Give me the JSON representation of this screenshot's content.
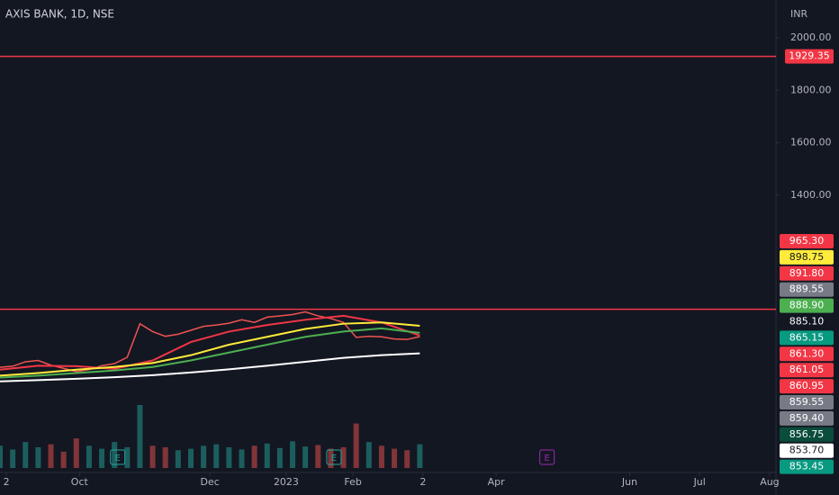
{
  "chart_data": {
    "type": "line",
    "title": "AXIS BANK, 1D, NSE",
    "currency": "INR",
    "xlim": [
      0,
      244
    ],
    "ylim": [
      360,
      2144
    ],
    "xticks": [
      {
        "value": 2,
        "label": "2"
      },
      {
        "value": 25,
        "label": "Oct"
      },
      {
        "value": 66,
        "label": "Dec"
      },
      {
        "value": 90,
        "label": "2023"
      },
      {
        "value": 111,
        "label": "Feb"
      },
      {
        "value": 133,
        "label": "2"
      },
      {
        "value": 156,
        "label": "Apr"
      },
      {
        "value": 198,
        "label": "Jun"
      },
      {
        "value": 220,
        "label": "Jul"
      },
      {
        "value": 242,
        "label": "Aug"
      }
    ],
    "yticks": [
      {
        "value": 2000,
        "label": "2000.00"
      },
      {
        "value": 1800,
        "label": "1800.00"
      },
      {
        "value": 1600,
        "label": "1600.00"
      },
      {
        "value": 1400,
        "label": "1400.00"
      }
    ],
    "series": [
      {
        "color": "#ef5350",
        "x": [
          0,
          4,
          8,
          12,
          16,
          20,
          24,
          28,
          32,
          36,
          40,
          44,
          48,
          52,
          56,
          60,
          64,
          68,
          72,
          76,
          80,
          84,
          88,
          92,
          96,
          100,
          104,
          108,
          112,
          116,
          120,
          124,
          128,
          132
        ],
        "values": [
          744,
          748,
          765,
          770,
          752,
          740,
          727,
          735,
          750,
          758,
          782,
          910,
          880,
          862,
          870,
          885,
          900,
          905,
          912,
          925,
          915,
          935,
          940,
          945,
          955,
          940,
          930,
          915,
          858,
          862,
          860,
          852,
          850,
          861
        ]
      },
      {
        "color": "#f23645",
        "x": [
          0,
          12,
          24,
          36,
          48,
          60,
          72,
          84,
          96,
          108,
          120,
          132
        ],
        "values": [
          735,
          750,
          748,
          738,
          770,
          840,
          880,
          905,
          925,
          940,
          915,
          865
        ]
      },
      {
        "color": "#ffeb3b",
        "x": [
          0,
          12,
          24,
          36,
          48,
          60,
          72,
          84,
          96,
          108,
          120,
          132
        ],
        "values": [
          712,
          722,
          735,
          745,
          760,
          790,
          830,
          860,
          890,
          910,
          915,
          902
        ]
      },
      {
        "color": "#4caf50",
        "x": [
          0,
          12,
          24,
          36,
          48,
          60,
          72,
          84,
          96,
          108,
          120,
          132
        ],
        "values": [
          705,
          712,
          722,
          732,
          745,
          770,
          800,
          830,
          860,
          880,
          892,
          875
        ]
      },
      {
        "color": "#ffffff",
        "x": [
          0,
          12,
          24,
          36,
          48,
          60,
          72,
          84,
          96,
          108,
          120,
          132
        ],
        "values": [
          690,
          695,
          700,
          706,
          714,
          724,
          736,
          750,
          765,
          780,
          790,
          797
        ]
      }
    ],
    "volume": {
      "x": [
        0,
        4,
        8,
        12,
        16,
        20,
        24,
        28,
        32,
        36,
        40,
        44,
        48,
        52,
        56,
        60,
        64,
        68,
        72,
        76,
        80,
        84,
        88,
        92,
        96,
        100,
        104,
        108,
        112,
        116,
        120,
        124,
        128,
        132
      ],
      "values": [
        30,
        25,
        35,
        28,
        32,
        22,
        40,
        30,
        26,
        35,
        28,
        85,
        30,
        28,
        24,
        26,
        30,
        32,
        28,
        25,
        30,
        33,
        27,
        36,
        29,
        31,
        26,
        28,
        60,
        35,
        30,
        26,
        24,
        32
      ]
    },
    "levels": [
      {
        "value": 1929.35,
        "color": "#f23645"
      },
      {
        "value": 965.3,
        "color": "#f23645"
      }
    ],
    "events": [
      {
        "x": 37,
        "label": "E",
        "color": "#26a69a"
      },
      {
        "x": 105,
        "label": "E",
        "color": "#26a69a"
      },
      {
        "x": 172,
        "label": "E",
        "color": "#9c27b0"
      }
    ],
    "price_tags": [
      {
        "label": "965.30",
        "color": "#f23645",
        "text_color": "#ffffff"
      },
      {
        "label": "898.75",
        "color": "#ffeb3b",
        "text_color": "#131722"
      },
      {
        "label": "891.80",
        "color": "#f23645",
        "text_color": "#ffffff"
      },
      {
        "label": "889.55",
        "color": "#787b86",
        "text_color": "#ffffff"
      },
      {
        "label": "888.90",
        "color": "#4caf50",
        "text_color": "#ffffff"
      },
      {
        "label": "885.10",
        "color": "#131722",
        "text_color": "#ffffff"
      },
      {
        "label": "865.15",
        "color": "#089981",
        "text_color": "#ffffff"
      },
      {
        "label": "861.30",
        "color": "#f23645",
        "text_color": "#ffffff"
      },
      {
        "label": "861.05",
        "color": "#f23645",
        "text_color": "#ffffff"
      },
      {
        "label": "860.95",
        "color": "#f23645",
        "text_color": "#ffffff"
      },
      {
        "label": "859.55",
        "color": "#787b86",
        "text_color": "#ffffff"
      },
      {
        "label": "859.40",
        "color": "#787b86",
        "text_color": "#ffffff"
      },
      {
        "label": "856.75",
        "color": "#0b4d3c",
        "text_color": "#ffffff"
      },
      {
        "label": "853.70",
        "color": "#ffffff",
        "text_color": "#131722"
      },
      {
        "label": "853.45",
        "color": "#089981",
        "text_color": "#ffffff"
      }
    ]
  }
}
